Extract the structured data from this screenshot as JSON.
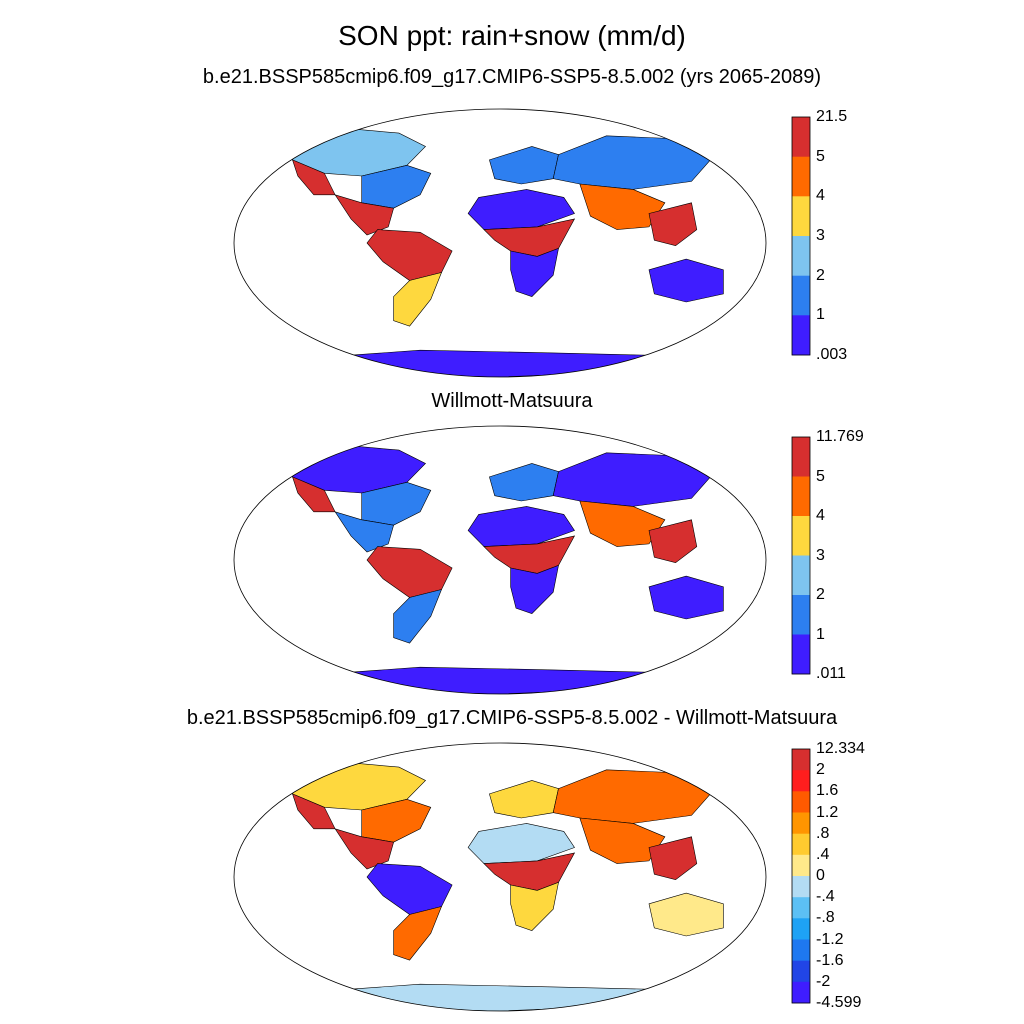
{
  "main_title": "SON ppt: rain+snow (mm/d)",
  "panels": [
    {
      "id": "model",
      "subtitle": "b.e21.BSSP585cmip6.f09_g17.CMIP6-SSP5-8.5.002 (yrs 2065-2089)",
      "colorbar": {
        "labels": [
          "21.5",
          "5",
          "4",
          "3",
          "2",
          "1",
          ".003"
        ],
        "colors": [
          "#d62f2f",
          "#ff6a00",
          "#fed83e",
          "#7ec4ef",
          "#2d7ff0",
          "#3f1dff"
        ]
      }
    },
    {
      "id": "obs",
      "subtitle": "Willmott-Matsuura",
      "colorbar": {
        "labels": [
          "11.769",
          "5",
          "4",
          "3",
          "2",
          "1",
          ".011"
        ],
        "colors": [
          "#d62f2f",
          "#ff6a00",
          "#fed83e",
          "#7ec4ef",
          "#2d7ff0",
          "#3f1dff"
        ]
      }
    },
    {
      "id": "diff",
      "subtitle": "b.e21.BSSP585cmip6.f09_g17.CMIP6-SSP5-8.5.002 - Willmott-Matsuura",
      "colorbar": {
        "labels": [
          "12.334",
          "2",
          "1.6",
          "1.2",
          ".8",
          ".4",
          "0",
          "-.4",
          "-.8",
          "-1.2",
          "-1.6",
          "-2",
          "-4.599"
        ],
        "colors": [
          "#d62f2f",
          "#ff1e1e",
          "#ff5a00",
          "#ff9500",
          "#ffcb2f",
          "#ffe98a",
          "#b3dcf3",
          "#5cc0f5",
          "#1ea2f5",
          "#1e78f0",
          "#2145e6",
          "#3f1dff"
        ]
      }
    }
  ],
  "map_colors": {
    "wet_red": "#d62f2f",
    "orange": "#ff6a00",
    "yellow": "#fed83e",
    "light_blue": "#7ec4ef",
    "mid_blue": "#2d7ff0",
    "dark_blue": "#3f1dff",
    "diff_pale_blue": "#b3dcf3",
    "diff_pale_yellow": "#ffe98a"
  }
}
